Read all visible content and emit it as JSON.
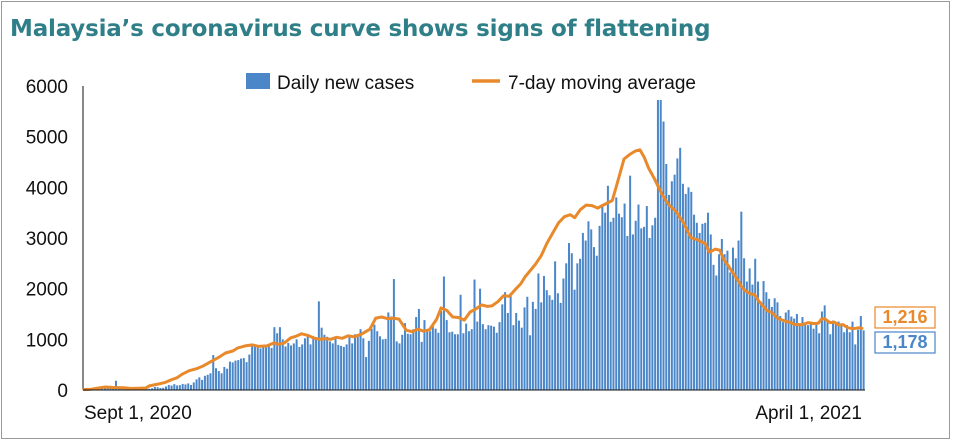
{
  "title": "Malaysia’s coronavirus curve shows signs of flattening",
  "colors": {
    "bars": "#4a86c8",
    "line": "#e8892b",
    "title": "#2f7f88"
  },
  "chart_data": {
    "type": "bar",
    "title": "Malaysia’s coronavirus curve shows signs of flattening",
    "xlabel": "",
    "ylabel": "",
    "ylim": [
      0,
      6000
    ],
    "yticks": [
      "0",
      "1000",
      "2000",
      "3000",
      "4000",
      "5000",
      "6000"
    ],
    "xtick_labels": [
      "Sept 1, 2020",
      "April 1, 2021"
    ],
    "legend": {
      "position": "top-center",
      "entries": [
        "Daily new cases",
        "7-day moving average"
      ]
    },
    "grid": false,
    "series": [
      {
        "name": "Daily new cases",
        "kind": "bar",
        "color": "#4a86c8",
        "start_date": "2020-09-01",
        "end_date": "2021-04-01",
        "values": [
          10,
          8,
          12,
          15,
          20,
          25,
          30,
          62,
          40,
          55,
          45,
          182,
          48,
          40,
          30,
          25,
          35,
          20,
          18,
          22,
          40,
          45,
          30,
          25,
          35,
          60,
          55,
          40,
          45,
          70,
          100,
          88,
          115,
          90,
          95,
          120,
          110,
          130,
          100,
          150,
          210,
          250,
          200,
          280,
          300,
          330,
          690,
          430,
          375,
          330,
          455,
          420,
          560,
          545,
          580,
          590,
          620,
          630,
          550,
          700,
          860,
          870,
          840,
          820,
          850,
          870,
          900,
          830,
          1240,
          1120,
          1240,
          1000,
          860,
          930,
          880,
          920,
          1000,
          850,
          900,
          1020,
          1100,
          900,
          1060,
          1000,
          1750,
          1230,
          1090,
          1050,
          960,
          920,
          1010,
          890,
          870,
          850,
          900,
          1050,
          920,
          1100,
          1050,
          1200,
          1020,
          650,
          970,
          1210,
          1290,
          1160,
          1060,
          1000,
          1010,
          1530,
          1450,
          2190,
          960,
          920,
          1090,
          1320,
          1110,
          1100,
          1200,
          1440,
          1600,
          950,
          1380,
          1180,
          1160,
          1280,
          1210,
          1130,
          1560,
          2240,
          1380,
          1140,
          1150,
          1100,
          1100,
          1880,
          1120,
          1310,
          1160,
          1200,
          2180,
          1350,
          2000,
          1300,
          1200,
          1280,
          1270,
          1250,
          1130,
          1340,
          1690,
          1930,
          1520,
          1910,
          1280,
          1520,
          1370,
          1230,
          1630,
          1840,
          1080,
          1740,
          1600,
          2300,
          1730,
          2250,
          1970,
          1870,
          1780,
          2540,
          1910,
          1720,
          2200,
          2500,
          2900,
          2700,
          1980,
          2500,
          2590,
          3100,
          2950,
          3330,
          3170,
          2820,
          2650,
          3240,
          3620,
          3500,
          4030,
          3320,
          3400,
          3800,
          3480,
          3410,
          3680,
          3040,
          4230,
          3070,
          3340,
          3660,
          3190,
          3220,
          3630,
          3000,
          3250,
          3400,
          5725,
          5725,
          5300,
          4460,
          3850,
          4120,
          4250,
          4570,
          4780,
          4070,
          3870,
          4000,
          3910,
          3460,
          3300,
          3100,
          3280,
          3300,
          3500,
          3070,
          2470,
          2260,
          2680,
          2980,
          2680,
          2750,
          2320,
          2810,
          2600,
          2950,
          3520,
          2600,
          2140,
          2400,
          2080,
          2590,
          2140,
          1750,
          2150,
          1930,
          1800,
          1640,
          1810,
          1730,
          1460,
          1340,
          1530,
          1580,
          1450,
          1410,
          1500,
          1310,
          1440,
          1290,
          1280,
          1330,
          1210,
          1330,
          1120,
          1550,
          1670,
          1340,
          1100,
          1370,
          1320,
          1350,
          1270,
          1140,
          1280,
          1140,
          1350,
          900,
          1190,
          1460,
          1178
        ]
      },
      {
        "name": "7-day moving average",
        "kind": "line",
        "color": "#e8892b",
        "start_date": "2020-09-01",
        "end_date": "2021-04-01",
        "points": [
          [
            0,
            10
          ],
          [
            10,
            15
          ],
          [
            20,
            40
          ],
          [
            30,
            60
          ],
          [
            40,
            50
          ],
          [
            55,
            45
          ],
          [
            65,
            30
          ],
          [
            75,
            35
          ],
          [
            85,
            40
          ],
          [
            90,
            80
          ],
          [
            100,
            110
          ],
          [
            112,
            150
          ],
          [
            120,
            200
          ],
          [
            128,
            240
          ],
          [
            135,
            310
          ],
          [
            145,
            380
          ],
          [
            155,
            420
          ],
          [
            165,
            480
          ],
          [
            175,
            560
          ],
          [
            185,
            640
          ],
          [
            195,
            730
          ],
          [
            205,
            770
          ],
          [
            212,
            830
          ],
          [
            222,
            870
          ],
          [
            232,
            890
          ],
          [
            241,
            860
          ],
          [
            252,
            870
          ],
          [
            262,
            930
          ],
          [
            268,
            900
          ],
          [
            276,
            930
          ],
          [
            285,
            1030
          ],
          [
            292,
            1060
          ],
          [
            300,
            1110
          ],
          [
            308,
            1080
          ],
          [
            316,
            1030
          ],
          [
            324,
            1000
          ],
          [
            332,
            1010
          ],
          [
            340,
            1000
          ],
          [
            348,
            1040
          ],
          [
            356,
            1020
          ],
          [
            364,
            1070
          ],
          [
            372,
            1050
          ],
          [
            382,
            1100
          ],
          [
            394,
            1200
          ],
          [
            402,
            1420
          ],
          [
            410,
            1440
          ],
          [
            418,
            1410
          ],
          [
            426,
            1420
          ],
          [
            434,
            1400
          ],
          [
            444,
            1180
          ],
          [
            452,
            1150
          ],
          [
            460,
            1200
          ],
          [
            468,
            1160
          ],
          [
            476,
            1190
          ],
          [
            486,
            1400
          ],
          [
            492,
            1620
          ],
          [
            500,
            1570
          ],
          [
            508,
            1440
          ],
          [
            516,
            1430
          ],
          [
            524,
            1380
          ],
          [
            532,
            1540
          ],
          [
            540,
            1600
          ],
          [
            548,
            1680
          ],
          [
            556,
            1650
          ],
          [
            562,
            1660
          ],
          [
            570,
            1740
          ],
          [
            578,
            1860
          ],
          [
            586,
            1850
          ],
          [
            594,
            1980
          ],
          [
            602,
            2100
          ],
          [
            608,
            2240
          ],
          [
            614,
            2340
          ],
          [
            622,
            2480
          ],
          [
            630,
            2650
          ],
          [
            638,
            2900
          ],
          [
            646,
            3100
          ],
          [
            654,
            3300
          ],
          [
            662,
            3420
          ],
          [
            670,
            3460
          ],
          [
            676,
            3400
          ],
          [
            684,
            3560
          ],
          [
            692,
            3650
          ],
          [
            700,
            3640
          ],
          [
            708,
            3590
          ],
          [
            714,
            3640
          ],
          [
            720,
            3680
          ],
          [
            728,
            3740
          ],
          [
            736,
            4140
          ],
          [
            744,
            4560
          ],
          [
            752,
            4650
          ],
          [
            760,
            4720
          ],
          [
            766,
            4740
          ],
          [
            772,
            4590
          ],
          [
            778,
            4380
          ],
          [
            786,
            4170
          ],
          [
            796,
            3870
          ],
          [
            806,
            3650
          ],
          [
            816,
            3520
          ],
          [
            826,
            3300
          ],
          [
            836,
            3010
          ],
          [
            846,
            2960
          ],
          [
            856,
            2890
          ],
          [
            862,
            2720
          ],
          [
            870,
            2780
          ],
          [
            876,
            2760
          ],
          [
            882,
            2560
          ],
          [
            888,
            2450
          ],
          [
            894,
            2310
          ],
          [
            900,
            2190
          ],
          [
            906,
            2040
          ],
          [
            912,
            1950
          ],
          [
            918,
            1900
          ],
          [
            924,
            1880
          ],
          [
            930,
            1750
          ],
          [
            936,
            1650
          ],
          [
            942,
            1560
          ],
          [
            948,
            1530
          ],
          [
            954,
            1430
          ],
          [
            962,
            1380
          ],
          [
            968,
            1350
          ],
          [
            974,
            1330
          ],
          [
            980,
            1290
          ],
          [
            990,
            1290
          ],
          [
            998,
            1330
          ],
          [
            1006,
            1310
          ],
          [
            1012,
            1320
          ],
          [
            1016,
            1400
          ],
          [
            1020,
            1410
          ],
          [
            1028,
            1330
          ],
          [
            1034,
            1340
          ],
          [
            1040,
            1280
          ],
          [
            1046,
            1290
          ],
          [
            1052,
            1230
          ],
          [
            1060,
            1210
          ],
          [
            1068,
            1230
          ],
          [
            1072,
            1216
          ]
        ]
      }
    ],
    "latest_average": "1,216",
    "latest_cases": "1,178"
  }
}
